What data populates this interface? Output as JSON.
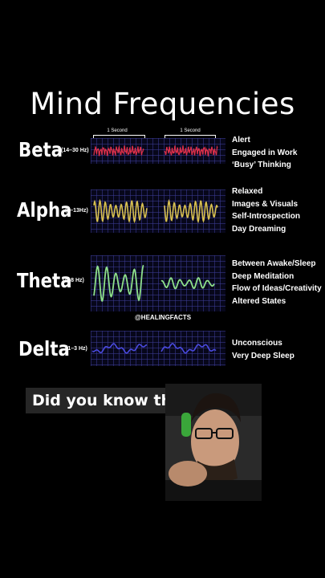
{
  "title": "Mind Frequencies",
  "second_label": "1 Second",
  "watermark": "@HEALINGFACTS",
  "question": "Did you know this ?",
  "waves": [
    {
      "name": "Beta",
      "hz": "(14–30 Hz)",
      "color": "#e0304a",
      "desc": [
        "Alert",
        "Engaged in Work",
        "‘Busy’ Thinking"
      ]
    },
    {
      "name": "Alpha",
      "hz": "(9–13Hz)",
      "color": "#d8c050",
      "desc": [
        "Relaxed",
        "Images & Visuals",
        "Self-Introspection",
        "Day Dreaming"
      ]
    },
    {
      "name": "Theta",
      "hz": "(4–8 Hz)",
      "color": "#8ee08a",
      "desc": [
        "Between Awake/Sleep",
        "Deep Meditation",
        "Flow of Ideas/Creativity",
        "Altered States"
      ]
    },
    {
      "name": "Delta",
      "hz": "(1–3 Hz)",
      "color": "#4a4ae0",
      "desc": [
        "Unconscious",
        "Very Deep Sleep"
      ]
    }
  ]
}
